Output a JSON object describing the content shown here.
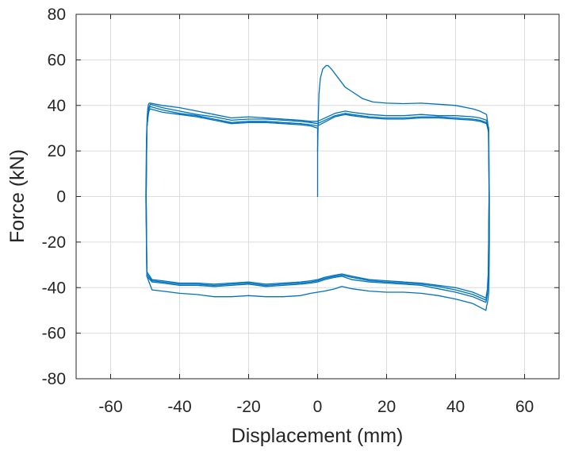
{
  "chart_data": {
    "type": "line",
    "title": "",
    "xlabel": "Displacement (mm)",
    "ylabel": "Force (kN)",
    "xlim": [
      -70,
      70
    ],
    "ylim": [
      -80,
      80
    ],
    "xticks": [
      -60,
      -40,
      -20,
      0,
      20,
      40,
      60
    ],
    "yticks": [
      80,
      60,
      40,
      20,
      0,
      -20,
      -40,
      -60,
      -80
    ],
    "xtick_labels": [
      "-60",
      "-40",
      "-20",
      "0",
      "20",
      "40",
      "60"
    ],
    "ytick_labels": [
      "80",
      "60",
      "40",
      "20",
      "0",
      "-20",
      "-40",
      "-60",
      "-80"
    ],
    "grid": true,
    "legend": "none",
    "color": "#0072BD",
    "series": [
      {
        "x": [
          0,
          0,
          0.2,
          0.4,
          0.8,
          1.5,
          2.5,
          3,
          4,
          6,
          8,
          10,
          13,
          16,
          20,
          25,
          30,
          35,
          40,
          45,
          47,
          49,
          49.5,
          49.8,
          49.8,
          49.7,
          49.6,
          49.4,
          49.2,
          49.0,
          48.8,
          45,
          40,
          35,
          30,
          25,
          20,
          15,
          10,
          7,
          5,
          2,
          0,
          -2,
          -5,
          -10,
          -15,
          -20,
          -25,
          -30,
          -35,
          -40,
          -45,
          -48,
          -49.5,
          -49.8,
          -49.6,
          -49.4,
          -49.2,
          -49.0,
          -48.8,
          -48.5,
          -45,
          -40,
          -35,
          -30,
          -25,
          -20,
          -15,
          -10,
          -5,
          -2,
          0
        ],
        "y": [
          0,
          20,
          35,
          45,
          52,
          56,
          57.5,
          57.5,
          56,
          52,
          48,
          46,
          43,
          41.5,
          41,
          40.8,
          41,
          40.5,
          40,
          38.5,
          37.5,
          36,
          30,
          0,
          -20,
          -35,
          -42,
          -45,
          -47,
          -48,
          -50,
          -47,
          -45,
          -43.5,
          -42.5,
          -42,
          -42,
          -41.5,
          -40.5,
          -39.5,
          -40.5,
          -41.5,
          -42,
          -42.5,
          -43.5,
          -44,
          -44,
          -43.5,
          -44,
          -44,
          -43,
          -42.5,
          -41.5,
          -41,
          -35,
          0,
          25,
          35,
          39,
          40.5,
          41,
          41,
          40,
          39,
          37.5,
          36,
          34.5,
          35,
          34.5,
          34,
          33.5,
          33,
          33
        ]
      },
      {
        "x": [
          0,
          5,
          8,
          10,
          15,
          20,
          25,
          30,
          35,
          40,
          45,
          47,
          49,
          49.6,
          49.7,
          49.5,
          49.2,
          48.8,
          45,
          40,
          35,
          30,
          25,
          20,
          15,
          10,
          7,
          5,
          2,
          0,
          -2,
          -5,
          -10,
          -15,
          -20,
          -25,
          -30,
          -35,
          -40,
          -45,
          -48,
          -49.5,
          -49.7,
          -49.5,
          -49.2,
          -48.9,
          -48.5,
          -45,
          -40,
          -35,
          -30,
          -25,
          -20,
          -15,
          -10,
          -5,
          -2,
          0
        ],
        "y": [
          33,
          36.5,
          37.5,
          37,
          36,
          35.5,
          35.5,
          36,
          35.5,
          35.5,
          35,
          34.5,
          33.5,
          30,
          0,
          -35,
          -43,
          -46.5,
          -44,
          -42,
          -40.5,
          -39,
          -38.5,
          -38,
          -37.5,
          -36.5,
          -35,
          -35.5,
          -36.5,
          -37.5,
          -38,
          -38.5,
          -39,
          -39.5,
          -38.5,
          -39,
          -39.5,
          -39,
          -39,
          -38,
          -37.5,
          -35,
          0,
          30,
          36,
          39,
          40.5,
          39,
          37.5,
          36,
          35,
          33.5,
          34,
          34,
          33.5,
          33,
          32.5,
          32
        ]
      },
      {
        "x": [
          0,
          5,
          8,
          10,
          15,
          20,
          25,
          30,
          35,
          40,
          45,
          47,
          49,
          49.6,
          49.7,
          49.5,
          49.2,
          48.8,
          45,
          40,
          35,
          30,
          25,
          20,
          15,
          10,
          7,
          5,
          2,
          0,
          -2,
          -5,
          -10,
          -15,
          -20,
          -25,
          -30,
          -35,
          -40,
          -45,
          -48,
          -49.5,
          -49.7,
          -49.5,
          -49.2,
          -48.9,
          -48.5,
          -45,
          -40,
          -35,
          -30,
          -25,
          -20,
          -15,
          -10,
          -5,
          -2,
          0
        ],
        "y": [
          32,
          35.5,
          36.5,
          36,
          35,
          34.5,
          34.5,
          35,
          35,
          34.5,
          34,
          33.5,
          32.5,
          28,
          0,
          -34,
          -42,
          -45.5,
          -43,
          -41,
          -39.5,
          -38.5,
          -38,
          -37.5,
          -37,
          -35.5,
          -34.5,
          -35,
          -36,
          -37,
          -37.5,
          -38,
          -38.5,
          -39,
          -38,
          -38.5,
          -39,
          -38.5,
          -38.5,
          -37.5,
          -37,
          -34,
          0,
          30,
          35,
          38.5,
          39.5,
          38,
          36.5,
          35.5,
          34,
          32.5,
          33,
          33,
          32.5,
          32,
          31.5,
          31
        ]
      },
      {
        "x": [
          0,
          5,
          8,
          10,
          15,
          20,
          25,
          30,
          35,
          40,
          45,
          47,
          49,
          49.6,
          49.7,
          49.5,
          49.2,
          48.8,
          45,
          40,
          35,
          30,
          25,
          20,
          15,
          10,
          7,
          5,
          2,
          0,
          -2,
          -5,
          -10,
          -15,
          -20,
          -25,
          -30,
          -35,
          -40,
          -45,
          -48,
          -49.5,
          -49.7,
          -49.5,
          -49.2,
          -48.9,
          -48.5,
          -45,
          -40,
          -35,
          -30,
          -25,
          -20,
          -15,
          -10,
          -5,
          -2,
          0,
          0
        ],
        "y": [
          31,
          35,
          36,
          35.5,
          34.5,
          34,
          34,
          34.5,
          34.5,
          34,
          33.5,
          33,
          32,
          28,
          0,
          -33,
          -41,
          -44.5,
          -42,
          -40,
          -39,
          -38,
          -37.5,
          -37,
          -36.5,
          -35,
          -34,
          -34.5,
          -35.5,
          -36.5,
          -37,
          -37.5,
          -38,
          -38.5,
          -37.5,
          -38,
          -38.5,
          -38,
          -38,
          -37,
          -36.5,
          -33,
          0,
          30,
          34.5,
          37.5,
          38.5,
          37,
          36,
          35,
          33.5,
          32,
          32.5,
          32.5,
          32,
          31.5,
          31,
          30,
          20
        ]
      }
    ]
  }
}
